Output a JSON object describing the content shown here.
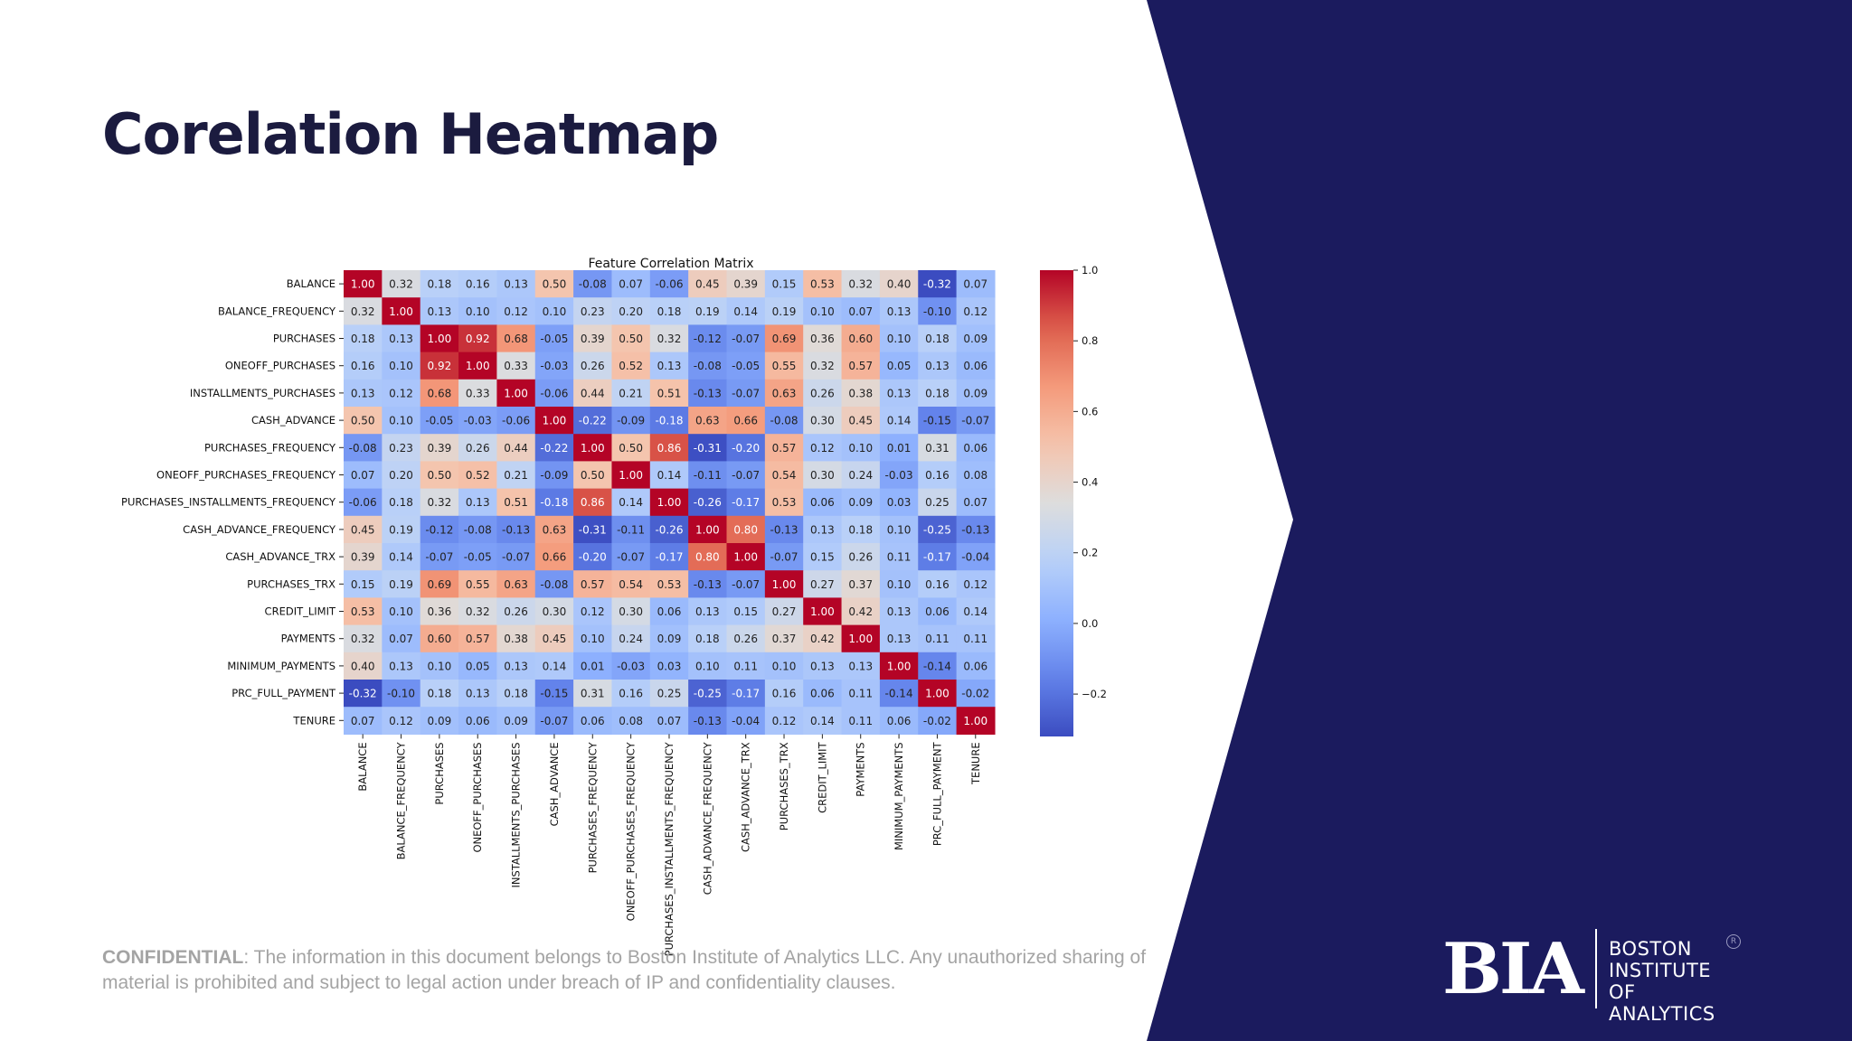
{
  "slide": {
    "title": "Corelation Heatmap",
    "footer_label": "CONFIDENTIAL",
    "footer_text": ": The information in this document belongs to Boston Institute of Analytics LLC. Any unauthorized sharing of material is prohibited and subject to legal action under breach of IP and confidentiality clauses.",
    "accent_color": "#1b1b5e"
  },
  "logo": {
    "mark": "BIA",
    "lines": [
      "BOSTON",
      "INSTITUTE OF",
      "ANALYTICS"
    ],
    "reg": "R"
  },
  "chart_data": {
    "type": "heatmap",
    "title": "Feature Correlation Matrix",
    "colormap": "coolwarm",
    "colorbar": {
      "min": -0.32,
      "max": 1.0,
      "ticks": [
        1.0,
        0.8,
        0.6,
        0.4,
        0.2,
        0.0,
        -0.2
      ],
      "tick_labels": [
        "1.0",
        "0.8",
        "0.6",
        "0.4",
        "0.2",
        "0.0",
        "−0.2"
      ]
    },
    "labels": [
      "BALANCE",
      "BALANCE_FREQUENCY",
      "PURCHASES",
      "ONEOFF_PURCHASES",
      "INSTALLMENTS_PURCHASES",
      "CASH_ADVANCE",
      "PURCHASES_FREQUENCY",
      "ONEOFF_PURCHASES_FREQUENCY",
      "PURCHASES_INSTALLMENTS_FREQUENCY",
      "CASH_ADVANCE_FREQUENCY",
      "CASH_ADVANCE_TRX",
      "PURCHASES_TRX",
      "CREDIT_LIMIT",
      "PAYMENTS",
      "MINIMUM_PAYMENTS",
      "PRC_FULL_PAYMENT",
      "TENURE"
    ],
    "matrix": [
      [
        1.0,
        0.32,
        0.18,
        0.16,
        0.13,
        0.5,
        -0.08,
        0.07,
        -0.06,
        0.45,
        0.39,
        0.15,
        0.53,
        0.32,
        0.4,
        -0.32,
        0.07
      ],
      [
        0.32,
        1.0,
        0.13,
        0.1,
        0.12,
        0.1,
        0.23,
        0.2,
        0.18,
        0.19,
        0.14,
        0.19,
        0.1,
        0.07,
        0.13,
        -0.1,
        0.12
      ],
      [
        0.18,
        0.13,
        1.0,
        0.92,
        0.68,
        -0.05,
        0.39,
        0.5,
        0.32,
        -0.12,
        -0.07,
        0.69,
        0.36,
        0.6,
        0.1,
        0.18,
        0.09
      ],
      [
        0.16,
        0.1,
        0.92,
        1.0,
        0.33,
        -0.03,
        0.26,
        0.52,
        0.13,
        -0.08,
        -0.05,
        0.55,
        0.32,
        0.57,
        0.05,
        0.13,
        0.06
      ],
      [
        0.13,
        0.12,
        0.68,
        0.33,
        1.0,
        -0.06,
        0.44,
        0.21,
        0.51,
        -0.13,
        -0.07,
        0.63,
        0.26,
        0.38,
        0.13,
        0.18,
        0.09
      ],
      [
        0.5,
        0.1,
        -0.05,
        -0.03,
        -0.06,
        1.0,
        -0.22,
        -0.09,
        -0.18,
        0.63,
        0.66,
        -0.08,
        0.3,
        0.45,
        0.14,
        -0.15,
        -0.07
      ],
      [
        -0.08,
        0.23,
        0.39,
        0.26,
        0.44,
        -0.22,
        1.0,
        0.5,
        0.86,
        -0.31,
        -0.2,
        0.57,
        0.12,
        0.1,
        0.01,
        0.31,
        0.06
      ],
      [
        0.07,
        0.2,
        0.5,
        0.52,
        0.21,
        -0.09,
        0.5,
        1.0,
        0.14,
        -0.11,
        -0.07,
        0.54,
        0.3,
        0.24,
        -0.03,
        0.16,
        0.08
      ],
      [
        -0.06,
        0.18,
        0.32,
        0.13,
        0.51,
        -0.18,
        0.86,
        0.14,
        1.0,
        -0.26,
        -0.17,
        0.53,
        0.06,
        0.09,
        0.03,
        0.25,
        0.07
      ],
      [
        0.45,
        0.19,
        -0.12,
        -0.08,
        -0.13,
        0.63,
        -0.31,
        -0.11,
        -0.26,
        1.0,
        0.8,
        -0.13,
        0.13,
        0.18,
        0.1,
        -0.25,
        -0.13
      ],
      [
        0.39,
        0.14,
        -0.07,
        -0.05,
        -0.07,
        0.66,
        -0.2,
        -0.07,
        -0.17,
        0.8,
        1.0,
        -0.07,
        0.15,
        0.26,
        0.11,
        -0.17,
        -0.04
      ],
      [
        0.15,
        0.19,
        0.69,
        0.55,
        0.63,
        -0.08,
        0.57,
        0.54,
        0.53,
        -0.13,
        -0.07,
        1.0,
        0.27,
        0.37,
        0.1,
        0.16,
        0.12
      ],
      [
        0.53,
        0.1,
        0.36,
        0.32,
        0.26,
        0.3,
        0.12,
        0.3,
        0.06,
        0.13,
        0.15,
        0.27,
        1.0,
        0.42,
        0.13,
        0.06,
        0.14
      ],
      [
        0.32,
        0.07,
        0.6,
        0.57,
        0.38,
        0.45,
        0.1,
        0.24,
        0.09,
        0.18,
        0.26,
        0.37,
        0.42,
        1.0,
        0.13,
        0.11,
        0.11
      ],
      [
        0.4,
        0.13,
        0.1,
        0.05,
        0.13,
        0.14,
        0.01,
        -0.03,
        0.03,
        0.1,
        0.11,
        0.1,
        0.13,
        0.13,
        1.0,
        -0.14,
        0.06
      ],
      [
        -0.32,
        -0.1,
        0.18,
        0.13,
        0.18,
        -0.15,
        0.31,
        0.16,
        0.25,
        -0.25,
        -0.17,
        0.16,
        0.06,
        0.11,
        -0.14,
        1.0,
        -0.02
      ],
      [
        0.07,
        0.12,
        0.09,
        0.06,
        0.09,
        -0.07,
        0.06,
        0.08,
        0.07,
        -0.13,
        -0.04,
        0.12,
        0.14,
        0.11,
        0.06,
        -0.02,
        1.0
      ]
    ]
  }
}
